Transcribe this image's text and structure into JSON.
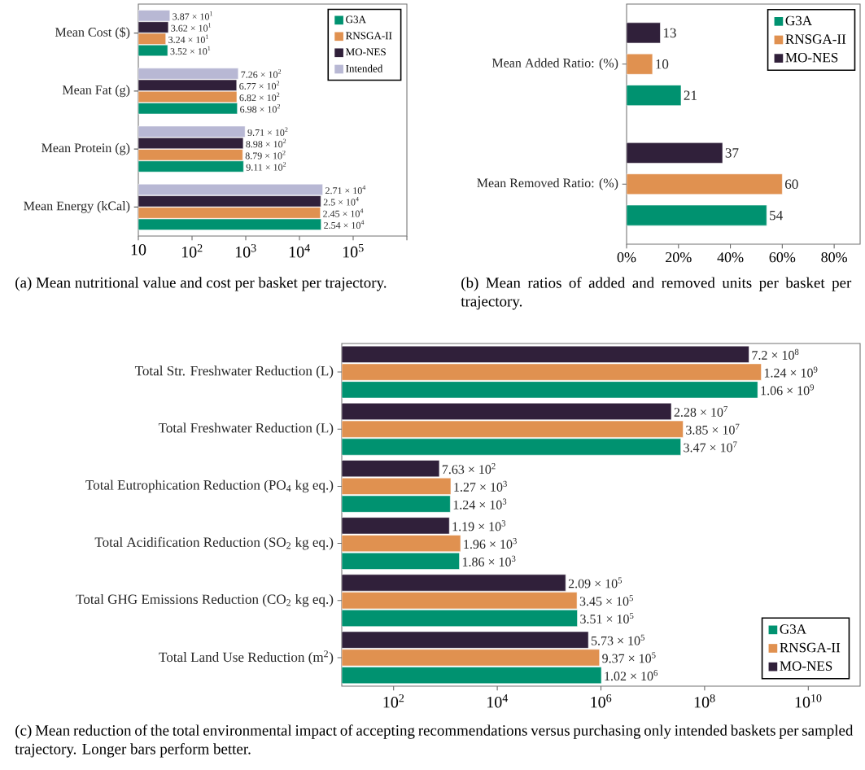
{
  "chart_data": [
    {
      "type": "bar",
      "orientation": "horizontal",
      "log": "x",
      "legend": "top right",
      "categories": [
        "Mean Cost ($)",
        "Mean Fat (g)",
        "Mean Protein (g)",
        "Mean Energy (kCal)"
      ],
      "xlim": [
        10,
        1000000
      ],
      "xticks": [
        10,
        {
          "value": 100,
          "label": "10$^{2}$"
        },
        {
          "value": 1000,
          "label": "10$^{3}$"
        },
        {
          "value": 10000,
          "label": "10$^{4}$"
        },
        {
          "value": 100000,
          "label": "10$^{5}$"
        },
        {
          "value": 1000000,
          "label": null
        }
      ],
      "series": [
        {
          "name": "G3A",
          "color": "#009270",
          "values": [
            35.2,
            698,
            911,
            25400
          ],
          "value_labels": [
            "3.52 × 10$^{1}$",
            "6.98 × 10$^{2}$",
            "9.11 × 10$^{2}$",
            "2.54 × 10$^{4}$"
          ]
        },
        {
          "name": "RNSGA-II",
          "color": "#e09150",
          "values": [
            32.4,
            682,
            879,
            24500
          ],
          "value_labels": [
            "3.24 × 10$^{1}$",
            "6.82 × 10$^{2}$",
            "8.79 × 10$^{2}$",
            "2.45 × 10$^{4}$"
          ]
        },
        {
          "name": "MO-NES",
          "color": "#30203a",
          "values": [
            36.2,
            677,
            898,
            25000
          ],
          "value_labels": [
            "3.62 × 10$^{1}$",
            "6.77 × 10$^{2}$",
            "8.98 × 10$^{2}$",
            "2.5 × 10$^{4}$"
          ]
        },
        {
          "name": "Intended",
          "color": "#b8b8d4",
          "values": [
            38.7,
            726,
            971,
            27100
          ],
          "value_labels": [
            "3.87 × 10$^{1}$",
            "7.26 × 10$^{2}$",
            "9.71 × 10$^{2}$",
            "2.71 × 10$^{4}$"
          ]
        }
      ],
      "annotations": [
        "(a) Mean nutritional value and cost per basket per trajectory."
      ]
    },
    {
      "type": "bar",
      "orientation": "horizontal",
      "legend": "top right",
      "data_labels": true,
      "categories": [
        "Mean Added Ratio: (%)",
        "Mean Removed Ratio: (%)"
      ],
      "xlim": [
        0,
        90
      ],
      "xticks": [
        {
          "value": 0,
          "label": "0%"
        },
        {
          "value": 20,
          "label": "20%"
        },
        {
          "value": 40,
          "label": "40%"
        },
        {
          "value": 60,
          "label": "60%"
        },
        {
          "value": 80,
          "label": "80%"
        }
      ],
      "series": [
        {
          "name": "G3A",
          "color": "#009270",
          "values": [
            21,
            54
          ]
        },
        {
          "name": "RNSGA-II",
          "color": "#e09150",
          "values": [
            10,
            60
          ]
        },
        {
          "name": "MO-NES",
          "color": "#30203a",
          "values": [
            13,
            37
          ]
        }
      ],
      "annotations": [
        "(b) Mean ratios of added and removed units per basket per trajectory."
      ]
    },
    {
      "type": "bar",
      "orientation": "horizontal",
      "log": "x",
      "legend": "bottom right",
      "categories": [
        "Total Str. Freshwater Reduction (L)",
        "Total Freshwater Reduction (L)",
        "Total Eutrophication Reduction (PO$_{4}$ kg eq.)",
        "Total Acidification Reduction (SO$_{2}$ kg eq.)",
        "Total GHG Emissions Reduction (CO$_{2}$ kg eq.)",
        "Total Land Use Reduction (m$^{2}$)"
      ],
      "xlim": [
        10,
        100000000000
      ],
      "xticks": [
        {
          "value": 100,
          "label": "10$^{2}$"
        },
        {
          "value": 10000,
          "label": "10$^{4}$"
        },
        {
          "value": 1000000,
          "label": "10$^{6}$"
        },
        {
          "value": 100000000,
          "label": "10$^{8}$"
        },
        {
          "value": 10000000000,
          "label": "10$^{10}$"
        }
      ],
      "series": [
        {
          "name": "G3A",
          "color": "#009270",
          "values": [
            1060000000,
            34700000,
            1240,
            1860,
            351000,
            1020000
          ],
          "value_labels": [
            "1.06 × 10$^{9}$",
            "3.47 × 10$^{7}$",
            "1.24 × 10$^{3}$",
            "1.86 × 10$^{3}$",
            "3.51 × 10$^{5}$",
            "1.02 × 10$^{6}$"
          ]
        },
        {
          "name": "RNSGA-II",
          "color": "#e09150",
          "values": [
            1240000000,
            38500000,
            1270,
            1960,
            345000,
            937000
          ],
          "value_labels": [
            "1.24 × 10$^{9}$",
            "3.85 × 10$^{7}$",
            "1.27 × 10$^{3}$",
            "1.96 × 10$^{3}$",
            "3.45 × 10$^{5}$",
            "9.37 × 10$^{5}$"
          ]
        },
        {
          "name": "MO-NES",
          "color": "#30203a",
          "values": [
            720000000,
            22800000,
            763,
            1190,
            209000,
            573000
          ],
          "value_labels": [
            "7.2 × 10$^{8}$",
            "2.28 × 10$^{7}$",
            "7.63 × 10$^{2}$",
            "1.19 × 10$^{3}$",
            "2.09 × 10$^{5}$",
            "5.73 × 10$^{5}$"
          ]
        }
      ],
      "annotations": [
        "(c) Mean reduction of the total environmental impact of accepting recommendations versus purchasing only intended baskets per sampled trajectory. Longer bars perform better."
      ]
    }
  ]
}
